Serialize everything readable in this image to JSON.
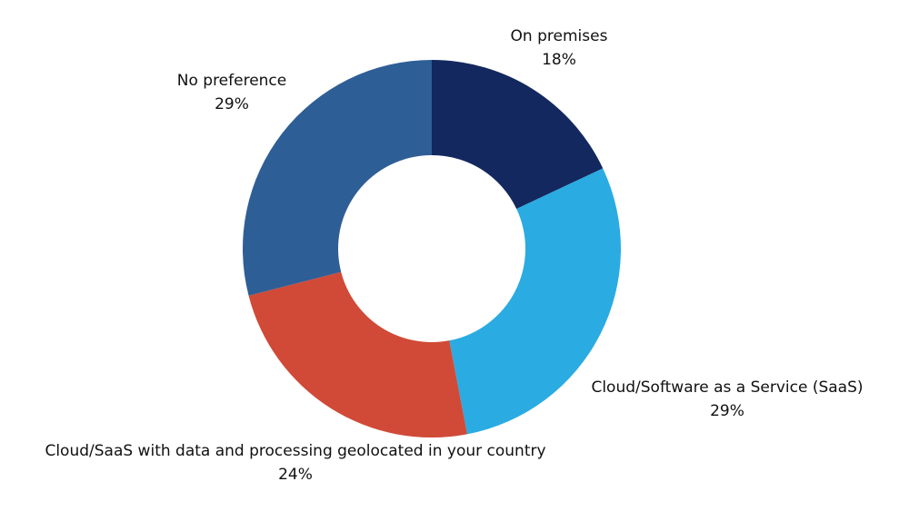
{
  "chart_data": {
    "type": "donut",
    "categories": [
      "On premises",
      "Cloud/Software as a Service (SaaS)",
      "Cloud/SaaS with data and processing geolocated in your country",
      "No preference"
    ],
    "values": [
      18,
      29,
      24,
      29
    ],
    "value_labels": [
      "18%",
      "29%",
      "24%",
      "29%"
    ],
    "colors": [
      "#13285e",
      "#2aabe2",
      "#d04a37",
      "#2e5e96"
    ]
  }
}
